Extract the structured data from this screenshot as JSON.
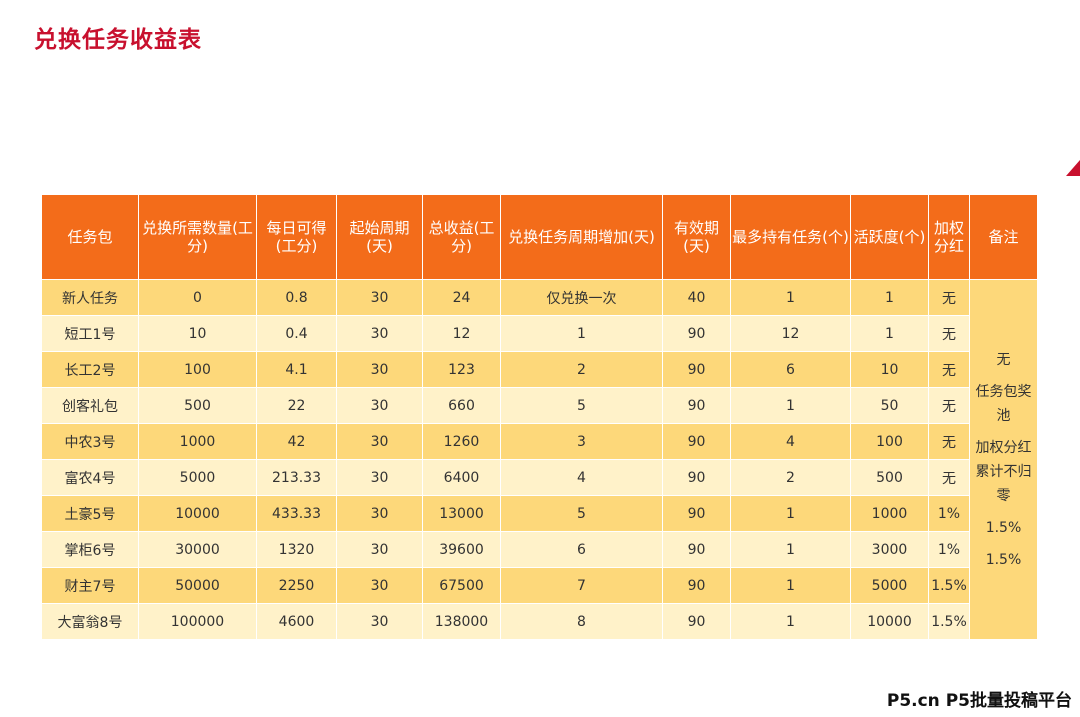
{
  "title": "兑换任务收益表",
  "colors": {
    "title": "#c8102e",
    "header_bg": "#f36c1a",
    "row_dark": "#fdd87a",
    "row_light": "#fff2c9"
  },
  "table": {
    "headers": [
      "任务包",
      "兑换所需数量(工分)",
      "每日可得(工分)",
      "起始周期(天)",
      "总收益(工分)",
      "兑换任务周期增加(天)",
      "有效期(天)",
      "最多持有任务(个)",
      "活跃度(个)",
      "加权分红",
      "备注"
    ],
    "rows": [
      [
        "新人任务",
        "0",
        "0.8",
        "30",
        "24",
        "仅兑换一次",
        "40",
        "1",
        "1",
        "无"
      ],
      [
        "短工1号",
        "10",
        "0.4",
        "30",
        "12",
        "1",
        "90",
        "12",
        "1",
        "无"
      ],
      [
        "长工2号",
        "100",
        "4.1",
        "30",
        "123",
        "2",
        "90",
        "6",
        "10",
        "无"
      ],
      [
        "创客礼包",
        "500",
        "22",
        "30",
        "660",
        "5",
        "90",
        "1",
        "50",
        "无"
      ],
      [
        "中农3号",
        "1000",
        "42",
        "30",
        "1260",
        "3",
        "90",
        "4",
        "100",
        "无"
      ],
      [
        "富农4号",
        "5000",
        "213.33",
        "30",
        "6400",
        "4",
        "90",
        "2",
        "500",
        "无"
      ],
      [
        "土豪5号",
        "10000",
        "433.33",
        "30",
        "13000",
        "5",
        "90",
        "1",
        "1000",
        "1%"
      ],
      [
        "掌柜6号",
        "30000",
        "1320",
        "30",
        "39600",
        "6",
        "90",
        "1",
        "3000",
        "1%"
      ],
      [
        "财主7号",
        "50000",
        "2250",
        "30",
        "67500",
        "7",
        "90",
        "1",
        "5000",
        "1.5%"
      ],
      [
        "大富翁8号",
        "100000",
        "4600",
        "30",
        "138000",
        "8",
        "90",
        "1",
        "10000",
        "1.5%"
      ]
    ],
    "notes": [
      "无",
      "任务包奖池",
      "加权分红累计不归零",
      "1.5%",
      "1.5%"
    ]
  },
  "footer": "P5.cn P5批量投稿平台"
}
